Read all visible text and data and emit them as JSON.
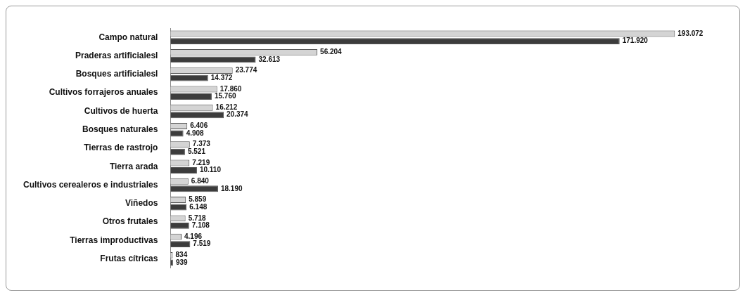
{
  "chart_data": {
    "type": "bar",
    "orientation": "horizontal",
    "categories": [
      "Campo natural",
      "Praderas artificialesl",
      "Bosques artificialesl",
      "Cultivos forrajeros anuales",
      "Cultivos de huerta",
      "Bosques naturales",
      "Tierras de rastrojo",
      "Tierra arada",
      "Cultivos cerealeros e industriales",
      "Viñedos",
      "Otros frutales",
      "Tierras improductivas",
      "Frutas cítricas"
    ],
    "series": [
      {
        "color": "#d4d4d4",
        "values": [
          193072,
          56204,
          23774,
          17860,
          16212,
          6406,
          7373,
          7219,
          6840,
          5859,
          5718,
          4196,
          834
        ],
        "value_labels": [
          "193.072",
          "56.204",
          "23.774",
          "17.860",
          "16.212",
          "6.406",
          "7.373",
          "7.219",
          "6.840",
          "5.859",
          "5.718",
          "4.196",
          "834"
        ]
      },
      {
        "color": "#3c3c3c",
        "values": [
          171920,
          32613,
          14372,
          15760,
          20374,
          4908,
          5521,
          10110,
          18190,
          6148,
          7108,
          7519,
          939
        ],
        "value_labels": [
          "171.920",
          "32.613",
          "14.372",
          "15.760",
          "20.374",
          "4.908",
          "5.521",
          "10.110",
          "18.190",
          "6.148",
          "7.108",
          "7.519",
          "939"
        ]
      }
    ]
  }
}
